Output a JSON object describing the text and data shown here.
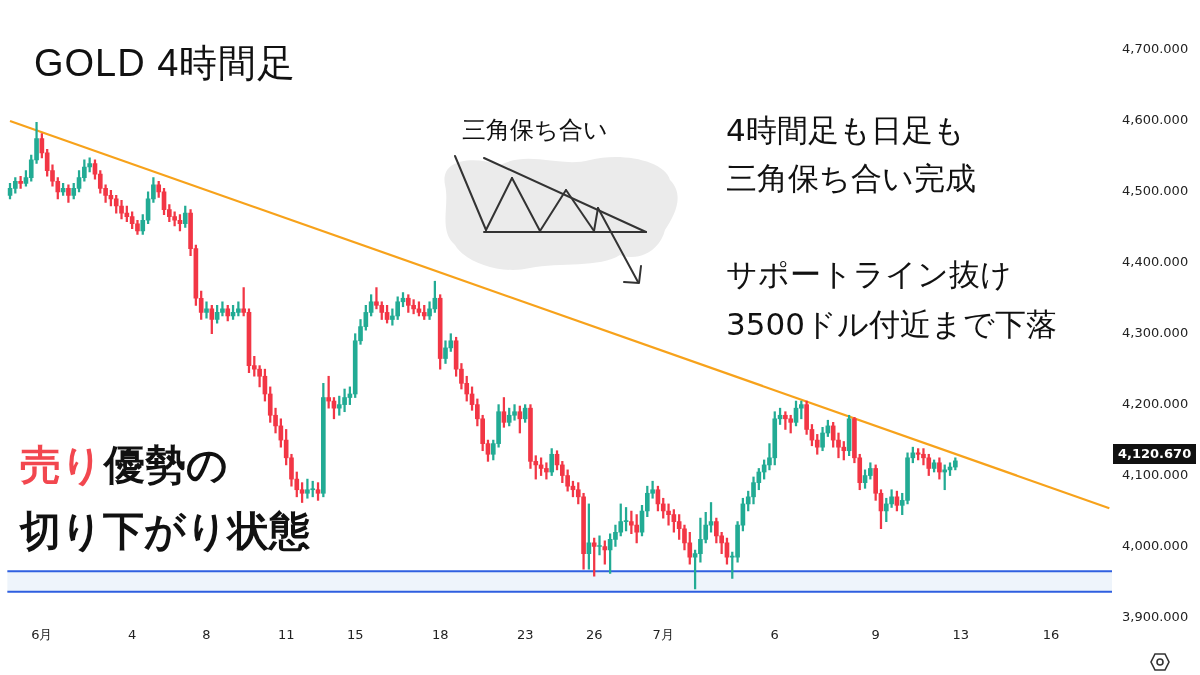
{
  "chart_data": {
    "type": "candlestick",
    "title": "GOLD 4時間足",
    "categories": [
      null,
      null,
      null,
      null,
      null,
      null,
      "6月",
      null,
      null,
      null,
      null,
      null,
      null,
      null,
      null,
      null,
      null,
      null,
      null,
      null,
      null,
      null,
      null,
      "4",
      null,
      null,
      null,
      null,
      null,
      null,
      null,
      null,
      null,
      null,
      null,
      null,
      null,
      "8",
      null,
      null,
      null,
      null,
      null,
      null,
      null,
      null,
      null,
      null,
      null,
      null,
      null,
      null,
      "11",
      null,
      null,
      null,
      null,
      null,
      null,
      null,
      null,
      null,
      null,
      null,
      null,
      "15",
      null,
      null,
      null,
      null,
      null,
      null,
      null,
      null,
      null,
      null,
      null,
      null,
      null,
      null,
      null,
      "18",
      null,
      null,
      null,
      null,
      null,
      null,
      null,
      null,
      null,
      null,
      null,
      null,
      null,
      null,
      null,
      "23",
      null,
      null,
      null,
      null,
      null,
      null,
      null,
      null,
      null,
      null,
      null,
      null,
      "26",
      null,
      null,
      null,
      null,
      null,
      null,
      null,
      null,
      null,
      null,
      null,
      null,
      "7月",
      null,
      null,
      null,
      null,
      null,
      null,
      null,
      null,
      null,
      null,
      null,
      null,
      null,
      null,
      null,
      null,
      null,
      null,
      null,
      null,
      "6",
      null,
      null,
      null,
      null,
      null,
      null,
      null,
      null,
      null,
      null,
      null,
      null,
      null,
      null,
      null,
      null,
      null,
      null,
      "9",
      null,
      null,
      null,
      null,
      null,
      null,
      null,
      null,
      null,
      null,
      null,
      null,
      null,
      null,
      null,
      "13",
      null,
      null,
      null,
      null,
      null,
      null,
      null,
      null,
      null,
      null,
      null,
      null,
      null,
      null,
      null,
      null,
      "16",
      null,
      null,
      null,
      null,
      null,
      null,
      null,
      null,
      null,
      null,
      null
    ],
    "ohlc": [
      [
        4495,
        4512,
        4490,
        4505
      ],
      [
        4505,
        4520,
        4498,
        4515
      ],
      [
        4515,
        4522,
        4505,
        4512
      ],
      [
        4512,
        4530,
        4508,
        4520
      ],
      [
        4520,
        4552,
        4515,
        4545
      ],
      [
        4545,
        4598,
        4540,
        4575
      ],
      [
        4575,
        4582,
        4548,
        4555
      ],
      [
        4555,
        4560,
        4522,
        4530
      ],
      [
        4530,
        4538,
        4508,
        4515
      ],
      [
        4515,
        4520,
        4490,
        4500
      ],
      [
        4500,
        4512,
        4495,
        4505
      ],
      [
        4505,
        4510,
        4485,
        4495
      ],
      [
        4495,
        4512,
        4490,
        4505
      ],
      [
        4505,
        4530,
        4500,
        4520
      ],
      [
        4520,
        4545,
        4515,
        4535
      ],
      [
        4535,
        4548,
        4528,
        4540
      ],
      [
        4540,
        4545,
        4518,
        4525
      ],
      [
        4525,
        4530,
        4498,
        4505
      ],
      [
        4505,
        4510,
        4485,
        4495
      ],
      [
        4495,
        4502,
        4480,
        4490
      ],
      [
        4490,
        4495,
        4470,
        4480
      ],
      [
        4480,
        4488,
        4462,
        4470
      ],
      [
        4470,
        4480,
        4458,
        4465
      ],
      [
        4465,
        4472,
        4448,
        4455
      ],
      [
        4455,
        4460,
        4440,
        4445
      ],
      [
        4445,
        4468,
        4440,
        4460
      ],
      [
        4460,
        4500,
        4455,
        4490
      ],
      [
        4490,
        4520,
        4485,
        4510
      ],
      [
        4510,
        4515,
        4492,
        4500
      ],
      [
        4500,
        4505,
        4468,
        4475
      ],
      [
        4475,
        4482,
        4458,
        4465
      ],
      [
        4465,
        4472,
        4452,
        4460
      ],
      [
        4460,
        4468,
        4445,
        4455
      ],
      [
        4455,
        4480,
        4450,
        4470
      ],
      [
        4470,
        4475,
        4410,
        4420
      ],
      [
        4420,
        4425,
        4340,
        4350
      ],
      [
        4350,
        4360,
        4320,
        4330
      ],
      [
        4330,
        4345,
        4322,
        4335
      ],
      [
        4335,
        4340,
        4300,
        4320
      ],
      [
        4320,
        4340,
        4315,
        4330
      ],
      [
        4330,
        4345,
        4325,
        4335
      ],
      [
        4335,
        4340,
        4318,
        4325
      ],
      [
        4325,
        4340,
        4320,
        4330
      ],
      [
        4330,
        4345,
        4325,
        4335
      ],
      [
        4335,
        4365,
        4325,
        4330
      ],
      [
        4330,
        4335,
        4245,
        4255
      ],
      [
        4255,
        4268,
        4240,
        4250
      ],
      [
        4250,
        4255,
        4225,
        4240
      ],
      [
        4240,
        4250,
        4205,
        4215
      ],
      [
        4215,
        4225,
        4175,
        4185
      ],
      [
        4185,
        4195,
        4160,
        4170
      ],
      [
        4170,
        4180,
        4140,
        4150
      ],
      [
        4150,
        4165,
        4115,
        4125
      ],
      [
        4125,
        4130,
        4085,
        4095
      ],
      [
        4095,
        4105,
        4070,
        4080
      ],
      [
        4080,
        4090,
        4062,
        4075
      ],
      [
        4075,
        4095,
        4068,
        4080
      ],
      [
        4080,
        4092,
        4070,
        4080
      ],
      [
        4080,
        4090,
        4065,
        4075
      ],
      [
        4075,
        4230,
        4070,
        4210
      ],
      [
        4210,
        4240,
        4195,
        4205
      ],
      [
        4205,
        4210,
        4180,
        4195
      ],
      [
        4195,
        4212,
        4185,
        4200
      ],
      [
        4200,
        4222,
        4190,
        4210
      ],
      [
        4210,
        4225,
        4200,
        4215
      ],
      [
        4215,
        4300,
        4210,
        4290
      ],
      [
        4290,
        4320,
        4285,
        4310
      ],
      [
        4310,
        4340,
        4305,
        4330
      ],
      [
        4330,
        4355,
        4325,
        4345
      ],
      [
        4345,
        4365,
        4335,
        4340
      ],
      [
        4340,
        4345,
        4320,
        4330
      ],
      [
        4330,
        4340,
        4315,
        4320
      ],
      [
        4320,
        4335,
        4312,
        4325
      ],
      [
        4325,
        4352,
        4320,
        4345
      ],
      [
        4345,
        4358,
        4338,
        4350
      ],
      [
        4350,
        4355,
        4330,
        4340
      ],
      [
        4340,
        4348,
        4328,
        4335
      ],
      [
        4335,
        4345,
        4325,
        4330
      ],
      [
        4330,
        4340,
        4320,
        4325
      ],
      [
        4325,
        4345,
        4320,
        4335
      ],
      [
        4335,
        4374,
        4330,
        4350
      ],
      [
        4350,
        4355,
        4250,
        4265
      ],
      [
        4265,
        4290,
        4258,
        4280
      ],
      [
        4280,
        4300,
        4275,
        4290
      ],
      [
        4290,
        4295,
        4240,
        4250
      ],
      [
        4250,
        4258,
        4222,
        4230
      ],
      [
        4230,
        4240,
        4205,
        4215
      ],
      [
        4215,
        4225,
        4192,
        4200
      ],
      [
        4200,
        4208,
        4170,
        4180
      ],
      [
        4180,
        4185,
        4135,
        4145
      ],
      [
        4145,
        4150,
        4120,
        4130
      ],
      [
        4130,
        4150,
        4122,
        4145
      ],
      [
        4145,
        4200,
        4140,
        4190
      ],
      [
        4190,
        4210,
        4168,
        4175
      ],
      [
        4175,
        4195,
        4170,
        4185
      ],
      [
        4185,
        4200,
        4178,
        4190
      ],
      [
        4190,
        4198,
        4160,
        4180
      ],
      [
        4180,
        4200,
        4175,
        4195
      ],
      [
        4195,
        4200,
        4110,
        4120
      ],
      [
        4120,
        4128,
        4095,
        4115
      ],
      [
        4115,
        4125,
        4100,
        4110
      ],
      [
        4110,
        4118,
        4095,
        4105
      ],
      [
        4105,
        4138,
        4100,
        4130
      ],
      [
        4130,
        4135,
        4108,
        4115
      ],
      [
        4115,
        4120,
        4090,
        4100
      ],
      [
        4100,
        4108,
        4078,
        4085
      ],
      [
        4085,
        4092,
        4070,
        4080
      ],
      [
        4080,
        4090,
        4060,
        4070
      ],
      [
        4070,
        4075,
        3968,
        3990
      ],
      [
        3990,
        4060,
        3968,
        4005
      ],
      [
        4005,
        4012,
        3958,
        4000
      ],
      [
        4000,
        4015,
        3988,
        4000
      ],
      [
        4000,
        4008,
        3975,
        3995
      ],
      [
        3995,
        4018,
        3962,
        4010
      ],
      [
        4010,
        4030,
        4000,
        4020
      ],
      [
        4020,
        4060,
        4015,
        4035
      ],
      [
        4035,
        4055,
        4022,
        4035
      ],
      [
        4035,
        4050,
        4018,
        4030
      ],
      [
        4030,
        4045,
        4005,
        4020
      ],
      [
        4020,
        4058,
        4015,
        4050
      ],
      [
        4050,
        4085,
        4042,
        4075
      ],
      [
        4075,
        4092,
        4068,
        4080
      ],
      [
        4080,
        4085,
        4050,
        4060
      ],
      [
        4060,
        4068,
        4040,
        4050
      ],
      [
        4050,
        4060,
        4030,
        4045
      ],
      [
        4045,
        4052,
        4020,
        4035
      ],
      [
        4035,
        4045,
        4010,
        4025
      ],
      [
        4025,
        4030,
        3995,
        4005
      ],
      [
        4005,
        4020,
        3975,
        3985
      ],
      [
        3985,
        3995,
        3940,
        3990
      ],
      [
        3990,
        4040,
        3978,
        4010
      ],
      [
        4010,
        4048,
        4005,
        4030
      ],
      [
        4030,
        4062,
        4020,
        4035
      ],
      [
        4035,
        4040,
        4005,
        4015
      ],
      [
        4015,
        4020,
        3990,
        4005
      ],
      [
        4005,
        4012,
        3975,
        3985
      ],
      [
        3985,
        3992,
        3955,
        3985
      ],
      [
        3985,
        4035,
        3978,
        4030
      ],
      [
        4030,
        4068,
        4022,
        4060
      ],
      [
        4060,
        4078,
        4050,
        4070
      ],
      [
        4070,
        4098,
        4060,
        4090
      ],
      [
        4090,
        4110,
        4080,
        4105
      ],
      [
        4105,
        4122,
        4095,
        4115
      ],
      [
        4115,
        4145,
        4108,
        4125
      ],
      [
        4125,
        4190,
        4115,
        4180
      ],
      [
        4180,
        4195,
        4172,
        4185
      ],
      [
        4185,
        4190,
        4165,
        4180
      ],
      [
        4180,
        4185,
        4160,
        4175
      ],
      [
        4175,
        4205,
        4170,
        4195
      ],
      [
        4195,
        4205,
        4180,
        4200
      ],
      [
        4200,
        4205,
        4158,
        4165
      ],
      [
        4165,
        4172,
        4142,
        4150
      ],
      [
        4150,
        4158,
        4130,
        4140
      ],
      [
        4140,
        4168,
        4135,
        4160
      ],
      [
        4160,
        4178,
        4155,
        4170
      ],
      [
        4170,
        4175,
        4140,
        4150
      ],
      [
        4150,
        4160,
        4125,
        4140
      ],
      [
        4140,
        4148,
        4122,
        4135
      ],
      [
        4135,
        4185,
        4128,
        4180
      ],
      [
        4180,
        4182,
        4118,
        4125
      ],
      [
        4125,
        4130,
        4080,
        4090
      ],
      [
        4090,
        4108,
        4082,
        4100
      ],
      [
        4100,
        4118,
        4095,
        4110
      ],
      [
        4110,
        4115,
        4065,
        4075
      ],
      [
        4075,
        4080,
        4025,
        4050
      ],
      [
        4050,
        4068,
        4035,
        4060
      ],
      [
        4060,
        4080,
        4055,
        4070
      ],
      [
        4070,
        4078,
        4050,
        4058
      ],
      [
        4058,
        4075,
        4045,
        4065
      ],
      [
        4065,
        4132,
        4060,
        4125
      ],
      [
        4125,
        4140,
        4118,
        4132
      ],
      [
        4132,
        4138,
        4122,
        4130
      ],
      [
        4130,
        4138,
        4115,
        4125
      ],
      [
        4125,
        4130,
        4100,
        4110
      ],
      [
        4110,
        4122,
        4105,
        4118
      ],
      [
        4118,
        4125,
        4095,
        4105
      ],
      [
        4105,
        4115,
        4080,
        4108
      ],
      [
        4108,
        4118,
        4100,
        4112
      ],
      [
        4112,
        4125,
        4108,
        4120.67
      ],
      null,
      null,
      null,
      null,
      null,
      null,
      null,
      null,
      null,
      null,
      null,
      null,
      null,
      null,
      null,
      null,
      null,
      null,
      null,
      null,
      null,
      null,
      null,
      null,
      null,
      null,
      null,
      null,
      null
    ],
    "series": [
      {
        "type": "line",
        "color": "#f7a21b",
        "values": [
          4600,
          null,
          null,
          null,
          null,
          null,
          null,
          null,
          null,
          null,
          null,
          null,
          null,
          null,
          null,
          null,
          null,
          null,
          null,
          null,
          null,
          null,
          null,
          null,
          null,
          null,
          null,
          null,
          null,
          null,
          null,
          null,
          null,
          null,
          null,
          null,
          null,
          null,
          null,
          null,
          null,
          null,
          null,
          null,
          null,
          null,
          null,
          null,
          null,
          null,
          null,
          null,
          null,
          null,
          null,
          null,
          null,
          null,
          null,
          null,
          null,
          null,
          null,
          null,
          null,
          null,
          null,
          null,
          null,
          null,
          null,
          null,
          null,
          null,
          null,
          null,
          null,
          null,
          null,
          null,
          null,
          null,
          null,
          null,
          null,
          null,
          null,
          null,
          null,
          null,
          null,
          null,
          null,
          null,
          null,
          null,
          null,
          null,
          null,
          null,
          null,
          null,
          null,
          null,
          null,
          null,
          null,
          null,
          null,
          null,
          null,
          null,
          null,
          null,
          null,
          null,
          null,
          null,
          null,
          null,
          null,
          null,
          null,
          null,
          null,
          null,
          null,
          null,
          null,
          null,
          null,
          null,
          null,
          null,
          null,
          null,
          null,
          null,
          null,
          null,
          null,
          null,
          null,
          null,
          null,
          null,
          null,
          null,
          null,
          null,
          null,
          null,
          null,
          null,
          null,
          null,
          null,
          null,
          null,
          null,
          null,
          null,
          null,
          null,
          null,
          null,
          null,
          null,
          null,
          null,
          null,
          null,
          null,
          null,
          null,
          null,
          null,
          null,
          null,
          null,
          null,
          null,
          null,
          null,
          null,
          null,
          null,
          null,
          null,
          null,
          null,
          null,
          null,
          null,
          null,
          null,
          null,
          null,
          null,
          null,
          null,
          null,
          null,
          null,
          null,
          null,
          null,
          4054
        ]
      }
    ],
    "ylim": [
      3900,
      4700
    ],
    "yticks": [
      {
        "value": 3900,
        "label": "3,900.000"
      },
      {
        "value": 4000,
        "label": "4,000.000"
      },
      {
        "value": 4100,
        "label": "4,100.000"
      },
      {
        "value": 4200,
        "label": "4,200.000"
      },
      {
        "value": 4300,
        "label": "4,300.000"
      },
      {
        "value": 4400,
        "label": "4,400.000"
      },
      {
        "value": 4500,
        "label": "4,500.000"
      },
      {
        "value": 4600,
        "label": "4,600.000"
      },
      {
        "value": 4700,
        "label": "4,700.000"
      }
    ],
    "bands": [
      {
        "axis": "y",
        "from": 3936,
        "to": 3965,
        "color": "#eef4fb"
      }
    ],
    "ref_lines": [
      {
        "axis": "y",
        "value": 3965,
        "color": "#2f5fe0"
      },
      {
        "axis": "y",
        "value": 3936,
        "color": "#2f5fe0"
      }
    ],
    "annotations": [
      "三角保ち合い",
      "4時間足も日足も",
      "三角保ち合い完成",
      "サポートライン抜け",
      "3500ドル付近まで下落",
      "売り",
      "優勢の",
      "切り下がり状態",
      "4,120.670"
    ],
    "legend": false
  }
}
